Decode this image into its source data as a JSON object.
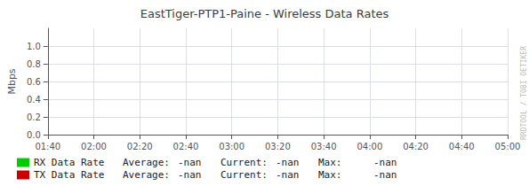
{
  "chart_data": {
    "type": "line",
    "title": "EastTiger-PTP1-Paine - Wireless Data Rates",
    "ylabel": "Mbps",
    "categories": [
      "01:40",
      "02:00",
      "02:20",
      "02:40",
      "03:00",
      "03:20",
      "03:40",
      "04:00",
      "04:20",
      "04:40",
      "05:00"
    ],
    "series": [
      {
        "name": "RX Data Rate",
        "color": "#00cc00",
        "values": [
          null,
          null,
          null,
          null,
          null,
          null,
          null,
          null,
          null,
          null,
          null
        ],
        "stats": [
          "-nan",
          "-nan",
          "-nan"
        ]
      },
      {
        "name": "TX Data Rate",
        "color": "#cc0000",
        "values": [
          null,
          null,
          null,
          null,
          null,
          null,
          null,
          null,
          null,
          null,
          null
        ],
        "stats": [
          "-nan",
          "-nan",
          "-nan"
        ]
      }
    ],
    "stat_labels": [
      "Average:",
      "Current:",
      "Max:"
    ],
    "annotations": [
      "RRDTOOL / TOBI OETIKER"
    ],
    "ylim": [
      0.0,
      1.2
    ],
    "yticks": [
      {
        "value": 0,
        "label": "0.0"
      },
      0.2,
      0.4,
      0.6,
      0.8,
      {
        "value": 1,
        "label": "1.0"
      }
    ],
    "grid": true
  }
}
